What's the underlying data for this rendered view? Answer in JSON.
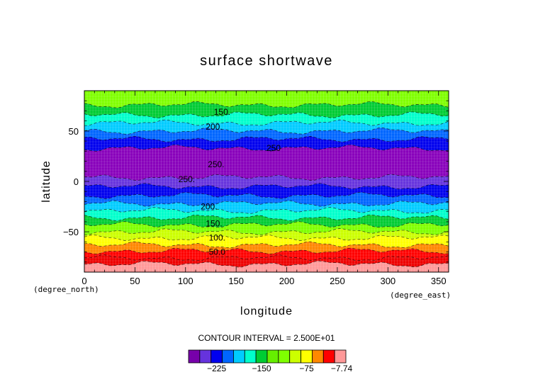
{
  "chart_data": {
    "type": "heatmap",
    "title": "surface shortwave",
    "xlabel": "longitude",
    "ylabel": "latitude",
    "x_unit": "(degree_east)",
    "y_unit": "(degree_north)",
    "xlim": [
      0,
      360
    ],
    "ylim": [
      -90,
      90
    ],
    "x_ticks": [
      "0",
      "50",
      "100",
      "150",
      "200",
      "250",
      "300",
      "350"
    ],
    "y_ticks": [
      "50",
      "0",
      "−50"
    ],
    "contour_interval_label": "CONTOUR INTERVAL = 2.500E+01",
    "contour_labels": [
      {
        "text": "150.",
        "lon": 128,
        "lat": 69
      },
      {
        "text": "200.",
        "lon": 120,
        "lat": 54
      },
      {
        "text": "250",
        "lon": 180,
        "lat": 33
      },
      {
        "text": "250.",
        "lon": 122,
        "lat": 17
      },
      {
        "text": "250.",
        "lon": 93,
        "lat": 2
      },
      {
        "text": "200.",
        "lon": 115,
        "lat": -25
      },
      {
        "text": "150.",
        "lon": 120,
        "lat": -42
      },
      {
        "text": "100.",
        "lon": 123,
        "lat": -56
      },
      {
        "text": "50.0",
        "lon": 123,
        "lat": -70
      }
    ],
    "lat_bands": [
      {
        "lat_min": 76,
        "lat_max": 90,
        "color": "#7fff00"
      },
      {
        "lat_min": 66,
        "lat_max": 76,
        "color": "#00cc33"
      },
      {
        "lat_min": 58,
        "lat_max": 66,
        "color": "#00ffcc"
      },
      {
        "lat_min": 50,
        "lat_max": 58,
        "color": "#00ccff"
      },
      {
        "lat_min": 42,
        "lat_max": 50,
        "color": "#0066ff"
      },
      {
        "lat_min": 33,
        "lat_max": 42,
        "color": "#0000ee"
      },
      {
        "lat_min": 4,
        "lat_max": 33,
        "color": "#8800bb"
      },
      {
        "lat_min": -5,
        "lat_max": 4,
        "color": "#6633dd"
      },
      {
        "lat_min": -14,
        "lat_max": -5,
        "color": "#0000ee"
      },
      {
        "lat_min": -22,
        "lat_max": -14,
        "color": "#0066ff"
      },
      {
        "lat_min": -29,
        "lat_max": -22,
        "color": "#00ccff"
      },
      {
        "lat_min": -36,
        "lat_max": -29,
        "color": "#00ffcc"
      },
      {
        "lat_min": -43,
        "lat_max": -36,
        "color": "#00cc33"
      },
      {
        "lat_min": -50,
        "lat_max": -43,
        "color": "#7fff00"
      },
      {
        "lat_min": -56,
        "lat_max": -50,
        "color": "#ccff00"
      },
      {
        "lat_min": -63,
        "lat_max": -56,
        "color": "#ffff00"
      },
      {
        "lat_min": -69,
        "lat_max": -63,
        "color": "#ff8800"
      },
      {
        "lat_min": -76,
        "lat_max": -69,
        "color": "#ff0000"
      },
      {
        "lat_min": -82,
        "lat_max": -76,
        "color": "#ee0000"
      },
      {
        "lat_min": -90,
        "lat_max": -82,
        "color": "#ff9999"
      }
    ],
    "colorbar": {
      "colors": [
        "#7700aa",
        "#6633dd",
        "#0000ee",
        "#0066ff",
        "#00ccff",
        "#00ffcc",
        "#00cc33",
        "#66ee00",
        "#7fff00",
        "#ccff00",
        "#ffff00",
        "#ff8800",
        "#ff0000",
        "#ff9999"
      ],
      "tick_labels": [
        "−225",
        "−150",
        "−75",
        "−7.74"
      ]
    }
  }
}
